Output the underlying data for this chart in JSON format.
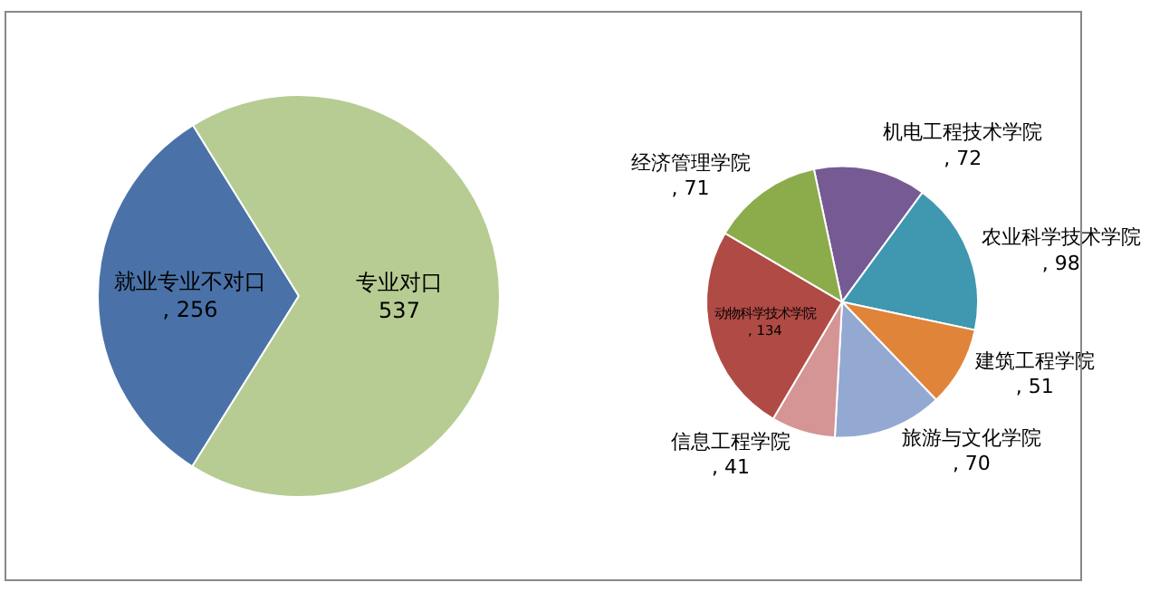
{
  "chart_data": [
    {
      "type": "pie",
      "categories": [
        "就业专业不对口",
        "专业对口"
      ],
      "values": [
        256,
        537
      ],
      "colors": [
        "#4a72a8",
        "#b6cc92"
      ],
      "value_labels": [
        ", 256",
        "537"
      ]
    },
    {
      "type": "pie",
      "categories": [
        "机电工程技术学院",
        "农业科学技术学院",
        "建筑工程学院",
        "旅游与文化学院",
        "信息工程学院",
        "动物科学技术学院",
        "经济管理学院"
      ],
      "values": [
        72,
        98,
        51,
        70,
        41,
        134,
        71
      ],
      "colors": [
        "#765a94",
        "#3f97b0",
        "#e0843a",
        "#93a9d2",
        "#d49594",
        "#b04a45",
        "#8cab4a"
      ],
      "value_labels": [
        ", 72",
        ", 98",
        ", 51",
        ", 70",
        ", 41",
        ", 134",
        ", 71"
      ]
    }
  ]
}
